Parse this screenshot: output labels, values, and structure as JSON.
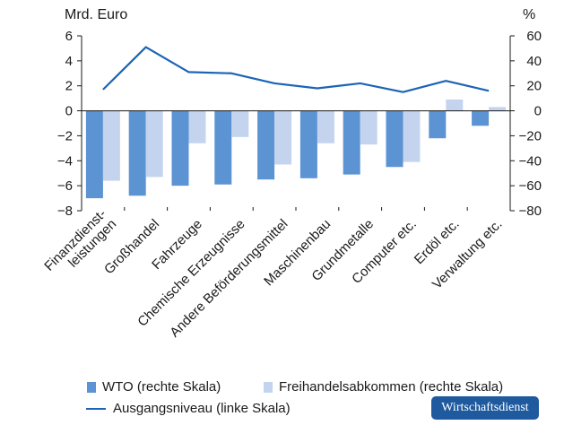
{
  "chart_data": {
    "type": "bar",
    "categories": [
      [
        "Finanzdienst-",
        "leistungen"
      ],
      [
        "Großhandel"
      ],
      [
        "Fahrzeuge"
      ],
      [
        "Chemische Erzeugnisse"
      ],
      [
        "Andere Beförderungsmittel"
      ],
      [
        "Maschinenbau"
      ],
      [
        "Grundmetalle"
      ],
      [
        "Computer etc."
      ],
      [
        "Erdöl etc."
      ],
      [
        "Verwaltung etc."
      ]
    ],
    "series": [
      {
        "name": "WTO (rechte Skala)",
        "axis": "right",
        "kind": "bar",
        "color": "#5b93d3",
        "values": [
          -70,
          -68,
          -60,
          -59,
          -55,
          -54,
          -51,
          -45,
          -22,
          -12
        ]
      },
      {
        "name": "Freihandelsabkommen (rechte Skala)",
        "axis": "right",
        "kind": "bar",
        "color": "#c5d4ee",
        "values": [
          -56,
          -53,
          -26,
          -21,
          -43,
          -26,
          -27,
          -41,
          9,
          3
        ]
      },
      {
        "name": "Ausgangsniveau (linke Skala)",
        "axis": "left",
        "kind": "line",
        "color": "#1c64b5",
        "values": [
          1.7,
          5.1,
          3.1,
          3.0,
          2.2,
          1.8,
          2.2,
          1.5,
          2.4,
          1.6
        ]
      }
    ],
    "left_axis": {
      "unit": "Mrd. Euro",
      "range": [
        -8,
        6
      ],
      "ticks": [
        "6",
        "4",
        "2",
        "0",
        "−2",
        "−4",
        "−6",
        "−8"
      ]
    },
    "right_axis": {
      "unit": "%",
      "range": [
        -80,
        60
      ],
      "ticks": [
        "60",
        "40",
        "20",
        "0",
        "−20",
        "−40",
        "−60",
        "−80"
      ]
    },
    "grid": false,
    "legend_position": "bottom"
  },
  "legend": {
    "wto": "WTO (rechte Skala)",
    "fha": "Freihandelsabkommen (rechte Skala)",
    "line": "Ausgangsniveau (linke Skala)"
  },
  "logo": "Wirtschaftsdienst"
}
